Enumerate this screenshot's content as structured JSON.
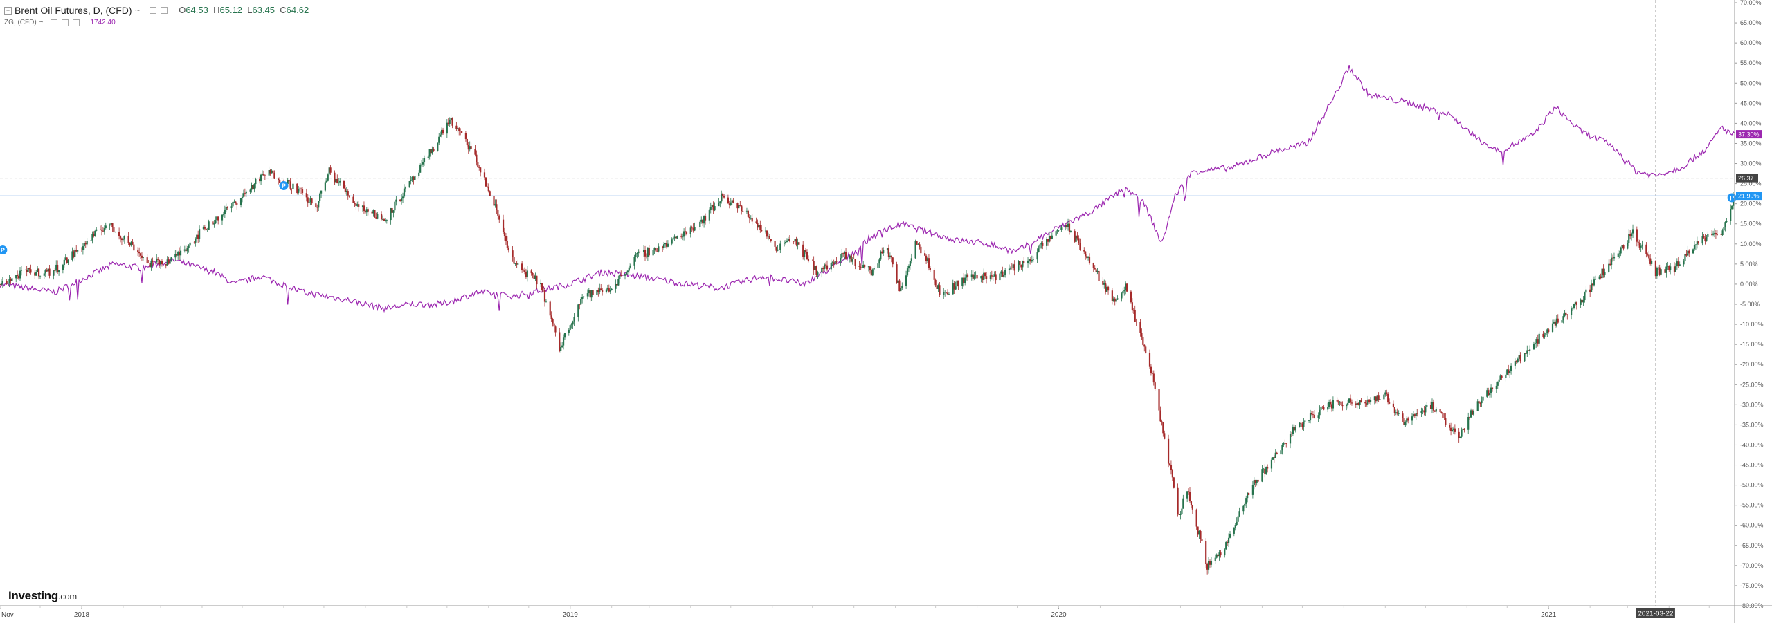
{
  "legend": {
    "main_title": "Brent Oil Futures, D, (CFD)",
    "open_key": "O",
    "open": "64.53",
    "high_key": "H",
    "high": "65.12",
    "low_key": "L",
    "low": "63.45",
    "close_key": "C",
    "close": "64.62",
    "compare_title": "ZG, (CFD)",
    "compare_value": "1742.40",
    "dropdown_glyph": "~"
  },
  "logo": {
    "brand": "Investing",
    "suffix": ".com"
  },
  "colors": {
    "up": "#26734d",
    "down": "#a52a2a",
    "compare": "#9c27b0",
    "crosshair": "#aaaaaa",
    "hline_blue": "#a8c8ef",
    "bg": "#ffffff"
  },
  "chart_data": {
    "type": "line",
    "title": "Brent Oil Futures, D, (CFD)",
    "y_unit": "percent change",
    "ylim": [
      -80,
      70
    ],
    "y_ticks": [
      "70.00%",
      "65.00%",
      "60.00%",
      "55.00%",
      "50.00%",
      "45.00%",
      "40.00%",
      "35.00%",
      "30.00%",
      "25.00%",
      "20.00%",
      "15.00%",
      "10.00%",
      "5.00%",
      "0.00%",
      "-5.00%",
      "-10.00%",
      "-15.00%",
      "-20.00%",
      "-25.00%",
      "-30.00%",
      "-35.00%",
      "-40.00%",
      "-45.00%",
      "-50.00%",
      "-55.00%",
      "-60.00%",
      "-65.00%",
      "-70.00%",
      "-75.00%",
      "-80.00%"
    ],
    "y_tick_values": [
      70,
      65,
      60,
      55,
      50,
      45,
      40,
      35,
      30,
      25,
      20,
      15,
      10,
      5,
      0,
      -5,
      -10,
      -15,
      -20,
      -25,
      -30,
      -35,
      -40,
      -45,
      -50,
      -55,
      -60,
      -65,
      -70,
      -75,
      -80
    ],
    "x_range": [
      "2017-11-01",
      "2021-05-20"
    ],
    "x_labels": [
      {
        "date": "2017-11-01",
        "label": "Nov"
      },
      {
        "date": "2018-01-01",
        "label": "2018"
      },
      {
        "date": "2019-01-01",
        "label": "2019"
      },
      {
        "date": "2020-01-01",
        "label": "2020"
      },
      {
        "date": "2021-01-01",
        "label": "2021"
      }
    ],
    "crosshair": {
      "date": "2021-03-22",
      "label": "2021-03-22",
      "value": 26.37,
      "value_label": "26.37"
    },
    "price_tags": [
      {
        "series": "ZG, (CFD)",
        "value": 37.3,
        "label": "37.30%"
      },
      {
        "series": "Brent Oil Futures, D, (CFD)",
        "value": 21.99,
        "label": "21.99%"
      }
    ],
    "dividend_markers": [
      {
        "date": "2017-11-03",
        "value": 8.5,
        "label": "P"
      },
      {
        "date": "2018-06-01",
        "value": 24.5,
        "label": "P"
      },
      {
        "date": "2021-05-18",
        "value": 21.5,
        "label": "P"
      }
    ],
    "series": [
      {
        "name": "Brent Oil Futures, D, (CFD)",
        "style": "candles",
        "points": [
          [
            "2017-11-01",
            0
          ],
          [
            "2017-11-20",
            3
          ],
          [
            "2017-12-10",
            3
          ],
          [
            "2017-12-31",
            9
          ],
          [
            "2018-01-20",
            15
          ],
          [
            "2018-02-10",
            9
          ],
          [
            "2018-02-20",
            5
          ],
          [
            "2018-03-10",
            6
          ],
          [
            "2018-03-31",
            13
          ],
          [
            "2018-04-25",
            20
          ],
          [
            "2018-05-20",
            28
          ],
          [
            "2018-06-10",
            24
          ],
          [
            "2018-06-25",
            19
          ],
          [
            "2018-07-05",
            28
          ],
          [
            "2018-07-25",
            20
          ],
          [
            "2018-08-15",
            16
          ],
          [
            "2018-09-10",
            28
          ],
          [
            "2018-10-03",
            41
          ],
          [
            "2018-10-20",
            33
          ],
          [
            "2018-11-05",
            20
          ],
          [
            "2018-11-20",
            5
          ],
          [
            "2018-12-10",
            0
          ],
          [
            "2018-12-24",
            -16
          ],
          [
            "2019-01-10",
            -3
          ],
          [
            "2019-02-01",
            -1
          ],
          [
            "2019-02-20",
            7
          ],
          [
            "2019-03-15",
            10
          ],
          [
            "2019-04-10",
            16
          ],
          [
            "2019-04-25",
            22
          ],
          [
            "2019-05-15",
            17
          ],
          [
            "2019-06-05",
            9
          ],
          [
            "2019-06-15",
            12
          ],
          [
            "2019-07-05",
            3
          ],
          [
            "2019-07-25",
            7
          ],
          [
            "2019-08-15",
            3
          ],
          [
            "2019-08-25",
            10
          ],
          [
            "2019-09-05",
            -2
          ],
          [
            "2019-09-16",
            11
          ],
          [
            "2019-09-25",
            6
          ],
          [
            "2019-10-05",
            -3
          ],
          [
            "2019-10-25",
            2
          ],
          [
            "2019-11-15",
            2
          ],
          [
            "2019-12-10",
            6
          ],
          [
            "2019-12-30",
            13
          ],
          [
            "2020-01-06",
            15
          ],
          [
            "2020-01-20",
            8
          ],
          [
            "2020-02-10",
            -4
          ],
          [
            "2020-02-20",
            -1
          ],
          [
            "2020-03-01",
            -12
          ],
          [
            "2020-03-09",
            -20
          ],
          [
            "2020-03-18",
            -35
          ],
          [
            "2020-03-31",
            -58
          ],
          [
            "2020-04-05",
            -50
          ],
          [
            "2020-04-21",
            -70
          ],
          [
            "2020-05-05",
            -65
          ],
          [
            "2020-05-25",
            -50
          ],
          [
            "2020-06-10",
            -43
          ],
          [
            "2020-06-25",
            -36
          ],
          [
            "2020-07-20",
            -30
          ],
          [
            "2020-08-15",
            -29
          ],
          [
            "2020-09-01",
            -28
          ],
          [
            "2020-09-15",
            -34
          ],
          [
            "2020-10-05",
            -30
          ],
          [
            "2020-10-25",
            -38
          ],
          [
            "2020-11-10",
            -29
          ],
          [
            "2020-12-01",
            -22
          ],
          [
            "2020-12-20",
            -15
          ],
          [
            "2021-01-05",
            -10
          ],
          [
            "2021-01-25",
            -4
          ],
          [
            "2021-02-15",
            5
          ],
          [
            "2021-03-05",
            13
          ],
          [
            "2021-03-22",
            3
          ],
          [
            "2021-04-05",
            4
          ],
          [
            "2021-04-25",
            11
          ],
          [
            "2021-05-10",
            13
          ],
          [
            "2021-05-20",
            22
          ]
        ]
      },
      {
        "name": "ZG, (CFD)",
        "style": "line",
        "points": [
          [
            "2017-11-01",
            0
          ],
          [
            "2017-12-12",
            -2
          ],
          [
            "2018-01-25",
            5
          ],
          [
            "2018-02-15",
            4
          ],
          [
            "2018-03-10",
            6
          ],
          [
            "2018-04-10",
            3
          ],
          [
            "2018-04-25",
            0
          ],
          [
            "2018-05-15",
            2
          ],
          [
            "2018-06-15",
            -2
          ],
          [
            "2018-07-20",
            -4
          ],
          [
            "2018-08-15",
            -6
          ],
          [
            "2018-09-05",
            -5
          ],
          [
            "2018-09-27",
            -5
          ],
          [
            "2018-10-25",
            -2
          ],
          [
            "2018-11-20",
            -3
          ],
          [
            "2018-12-31",
            0
          ],
          [
            "2019-01-25",
            3
          ],
          [
            "2019-02-20",
            2
          ],
          [
            "2019-03-30",
            0
          ],
          [
            "2019-04-22",
            -1
          ],
          [
            "2019-05-25",
            2
          ],
          [
            "2019-06-25",
            0
          ],
          [
            "2019-07-25",
            6
          ],
          [
            "2019-08-15",
            12
          ],
          [
            "2019-09-05",
            15
          ],
          [
            "2019-10-15",
            11
          ],
          [
            "2019-11-10",
            10
          ],
          [
            "2019-11-30",
            8
          ],
          [
            "2019-12-31",
            14
          ],
          [
            "2020-01-25",
            18
          ],
          [
            "2020-02-20",
            24
          ],
          [
            "2020-03-05",
            20
          ],
          [
            "2020-03-18",
            10
          ],
          [
            "2020-03-28",
            22
          ],
          [
            "2020-04-10",
            28
          ],
          [
            "2020-05-10",
            29
          ],
          [
            "2020-06-10",
            33
          ],
          [
            "2020-07-05",
            35
          ],
          [
            "2020-07-27",
            48
          ],
          [
            "2020-08-05",
            54
          ],
          [
            "2020-08-20",
            47
          ],
          [
            "2020-09-20",
            45
          ],
          [
            "2020-10-20",
            42
          ],
          [
            "2020-11-09",
            36
          ],
          [
            "2020-11-25",
            33
          ],
          [
            "2020-12-20",
            37
          ],
          [
            "2021-01-06",
            44
          ],
          [
            "2021-01-25",
            38
          ],
          [
            "2021-02-15",
            35
          ],
          [
            "2021-03-08",
            28
          ],
          [
            "2021-03-22",
            27
          ],
          [
            "2021-04-10",
            29
          ],
          [
            "2021-04-30",
            34
          ],
          [
            "2021-05-10",
            39
          ],
          [
            "2021-05-20",
            37
          ]
        ]
      }
    ]
  }
}
